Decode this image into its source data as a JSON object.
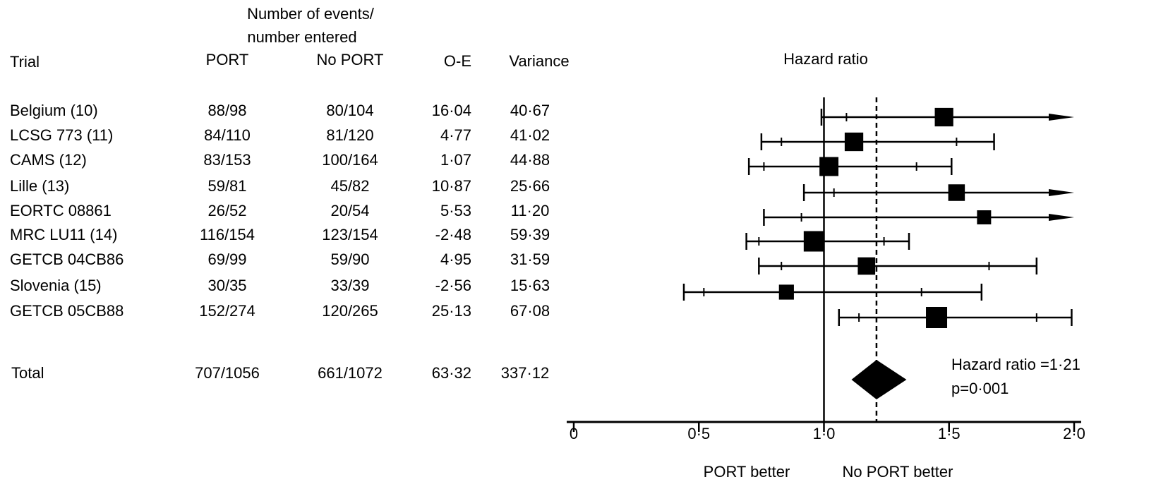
{
  "header": {
    "events_line1": "Number of events/",
    "events_line2": "number entered",
    "trial": "Trial",
    "port": "PORT",
    "noport": "No PORT",
    "oe": "O-E",
    "variance": "Variance",
    "hazard_ratio": "Hazard ratio"
  },
  "rows": [
    {
      "trial": "Belgium (10)",
      "port": "88/98",
      "noport": "80/104",
      "oe": "16·04",
      "variance": "40·67"
    },
    {
      "trial": "LCSG 773 (11)",
      "port": "84/110",
      "noport": "81/120",
      "oe": "4·77",
      "variance": "41·02"
    },
    {
      "trial": "CAMS (12)",
      "port": "83/153",
      "noport": "100/164",
      "oe": "1·07",
      "variance": "44·88"
    },
    {
      "trial": "Lille (13)",
      "port": "59/81",
      "noport": "45/82",
      "oe": "10·87",
      "variance": "25·66"
    },
    {
      "trial": "EORTC 08861",
      "port": "26/52",
      "noport": "20/54",
      "oe": "5·53",
      "variance": "11·20"
    },
    {
      "trial": "MRC LU11 (14)",
      "port": "116/154",
      "noport": "123/154",
      "oe": "-2·48",
      "variance": "59·39"
    },
    {
      "trial": "GETCB 04CB86",
      "port": "69/99",
      "noport": "59/90",
      "oe": "4·95",
      "variance": "31·59"
    },
    {
      "trial": "Slovenia (15)",
      "port": "30/35",
      "noport": "33/39",
      "oe": "-2·56",
      "variance": "15·63"
    },
    {
      "trial": "GETCB 05CB88",
      "port": "152/274",
      "noport": "120/265",
      "oe": "25·13",
      "variance": "67·08"
    }
  ],
  "total": {
    "trial": "Total",
    "port": "707/1056",
    "noport": "661/1072",
    "oe": "63·32",
    "variance": "337·12"
  },
  "summary": {
    "hr_label": "Hazard ratio =1·21",
    "p_label": "p=0·001"
  },
  "axis": {
    "ticks": [
      0,
      0.5,
      1.0,
      1.5,
      2.0
    ],
    "tick_labels": [
      "0",
      "0·5",
      "1·0",
      "1·5",
      "2·0"
    ],
    "left_label": "PORT better",
    "right_label": "No PORT better"
  },
  "chart_data": {
    "type": "forest",
    "xlim": [
      0,
      2.0
    ],
    "reference_line": 1.0,
    "pooled_line": 1.21,
    "pooled": {
      "hr": 1.21,
      "low": 1.11,
      "high": 1.33
    },
    "studies": [
      {
        "name": "Belgium (10)",
        "hr": 1.48,
        "ci99": [
          0.99,
          2.0
        ],
        "ci95": [
          1.09,
          2.0
        ],
        "arrow": true
      },
      {
        "name": "LCSG 773 (11)",
        "hr": 1.12,
        "ci99": [
          0.75,
          1.68
        ],
        "ci95": [
          0.83,
          1.53
        ],
        "arrow": false
      },
      {
        "name": "CAMS (12)",
        "hr": 1.02,
        "ci99": [
          0.7,
          1.51
        ],
        "ci95": [
          0.76,
          1.37
        ],
        "arrow": false
      },
      {
        "name": "Lille (13)",
        "hr": 1.53,
        "ci99": [
          0.92,
          2.0
        ],
        "ci95": [
          1.04,
          2.0
        ],
        "arrow": true
      },
      {
        "name": "EORTC 08861",
        "hr": 1.64,
        "ci99": [
          0.76,
          2.0
        ],
        "ci95": [
          0.91,
          2.0
        ],
        "arrow": true
      },
      {
        "name": "MRC LU11 (14)",
        "hr": 0.96,
        "ci99": [
          0.69,
          1.34
        ],
        "ci95": [
          0.74,
          1.24
        ],
        "arrow": false
      },
      {
        "name": "GETCB 04CB86",
        "hr": 1.17,
        "ci99": [
          0.74,
          1.85
        ],
        "ci95": [
          0.83,
          1.66
        ],
        "arrow": false
      },
      {
        "name": "Slovenia (15)",
        "hr": 0.85,
        "ci99": [
          0.44,
          1.63
        ],
        "ci95": [
          0.52,
          1.39
        ],
        "arrow": false
      },
      {
        "name": "GETCB 05CB88",
        "hr": 1.45,
        "ci99": [
          1.06,
          1.99
        ],
        "ci95": [
          1.14,
          1.85
        ],
        "arrow": false
      }
    ],
    "weights": [
      40.67,
      41.02,
      44.88,
      25.66,
      11.2,
      59.39,
      31.59,
      15.63,
      67.08
    ]
  }
}
